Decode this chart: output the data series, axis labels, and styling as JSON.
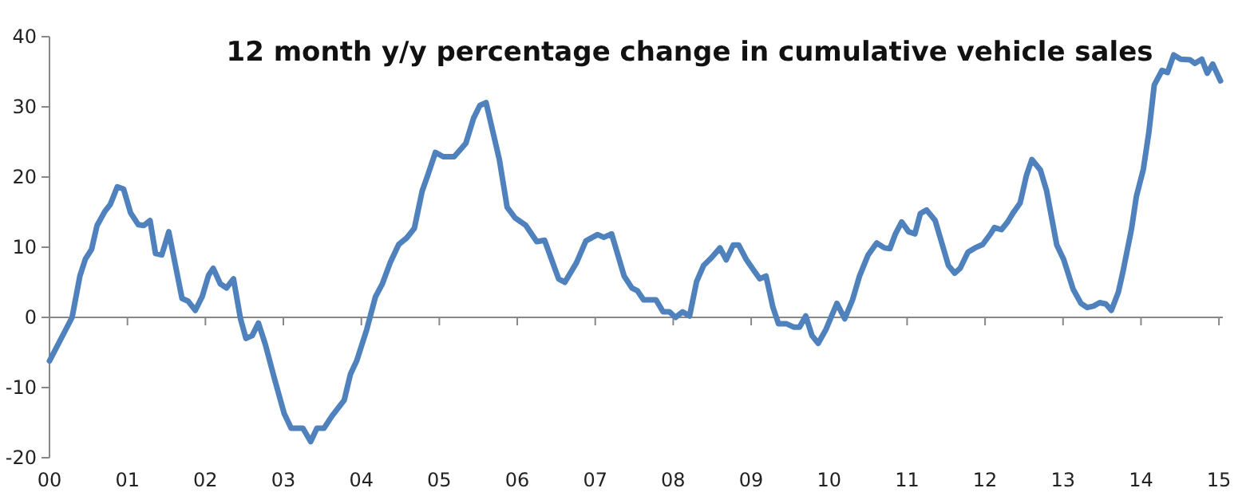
{
  "chart_data": {
    "type": "line",
    "title": "12 month y/y percentage change in cumulative vehicle sales",
    "x": [
      2000.0,
      2000.29,
      2000.39,
      2000.46,
      2000.54,
      2000.61,
      2000.71,
      2000.78,
      2000.87,
      2000.95,
      2001.04,
      2001.14,
      2001.21,
      2001.29,
      2001.36,
      2001.44,
      2001.53,
      2001.63,
      2001.7,
      2001.78,
      2001.87,
      2001.96,
      2002.04,
      2002.1,
      2002.19,
      2002.27,
      2002.36,
      2002.45,
      2002.52,
      2002.6,
      2002.68,
      2002.77,
      2002.88,
      2003.01,
      2003.1,
      2003.25,
      2003.35,
      2003.43,
      2003.52,
      2003.62,
      2003.78,
      2003.86,
      2003.94,
      2004.07,
      2004.18,
      2004.27,
      2004.37,
      2004.48,
      2004.58,
      2004.68,
      2004.78,
      2004.85,
      2004.95,
      2005.05,
      2005.19,
      2005.34,
      2005.44,
      2005.52,
      2005.6,
      2005.77,
      2005.87,
      2005.97,
      2006.11,
      2006.25,
      2006.35,
      2006.53,
      2006.61,
      2006.76,
      2006.88,
      2007.03,
      2007.11,
      2007.21,
      2007.37,
      2007.47,
      2007.54,
      2007.62,
      2007.78,
      2007.87,
      2007.95,
      2008.03,
      2008.12,
      2008.21,
      2008.3,
      2008.39,
      2008.49,
      2008.6,
      2008.68,
      2008.77,
      2008.84,
      2008.94,
      2009.04,
      2009.11,
      2009.19,
      2009.28,
      2009.35,
      2009.45,
      2009.55,
      2009.62,
      2009.7,
      2009.78,
      2009.86,
      2009.96,
      2010.1,
      2010.2,
      2010.3,
      2010.39,
      2010.5,
      2010.61,
      2010.71,
      2010.78,
      2010.85,
      2010.93,
      2011.02,
      2011.1,
      2011.17,
      2011.25,
      2011.36,
      2011.44,
      2011.53,
      2011.61,
      2011.68,
      2011.78,
      2011.87,
      2011.97,
      2012.07,
      2012.12,
      2012.21,
      2012.29,
      2012.36,
      2012.45,
      2012.53,
      2012.6,
      2012.71,
      2012.79,
      2012.92,
      2013.01,
      2013.13,
      2013.23,
      2013.31,
      2013.39,
      2013.47,
      2013.55,
      2013.62,
      2013.71,
      2013.77,
      2013.88,
      2013.94,
      2014.03,
      2014.1,
      2014.17,
      2014.27,
      2014.34,
      2014.42,
      2014.51,
      2014.63,
      2014.69,
      2014.78,
      2014.85,
      2014.92,
      2015.02
    ],
    "series": [
      {
        "color": "#4f81bd",
        "values": [
          -6.2,
          0,
          5.9,
          8.3,
          9.7,
          13.1,
          15.1,
          16.1,
          18.6,
          18.3,
          14.9,
          13.2,
          13.1,
          13.8,
          9.1,
          8.9,
          12.2,
          6.6,
          2.7,
          2.3,
          1.0,
          3.0,
          6.0,
          7.0,
          4.8,
          4.2,
          5.5,
          -0.2,
          -3.0,
          -2.6,
          -0.8,
          -3.9,
          -8.5,
          -13.7,
          -15.8,
          -15.8,
          -17.7,
          -15.8,
          -15.8,
          -14.1,
          -11.8,
          -8.1,
          -6.2,
          -1.7,
          2.9,
          4.8,
          7.8,
          10.4,
          11.3,
          12.7,
          18.0,
          20.2,
          23.5,
          22.9,
          22.9,
          24.8,
          28.4,
          30.2,
          30.6,
          22.5,
          15.7,
          14.2,
          13.1,
          10.8,
          11.0,
          5.5,
          5.0,
          7.8,
          10.9,
          11.8,
          11.4,
          11.9,
          5.9,
          4.2,
          3.8,
          2.5,
          2.5,
          0.8,
          0.8,
          0,
          0.8,
          0.2,
          5.1,
          7.4,
          8.5,
          9.9,
          8.2,
          10.3,
          10.3,
          8.2,
          6.6,
          5.5,
          5.9,
          1.4,
          -0.9,
          -0.9,
          -1.4,
          -1.4,
          0.2,
          -2.6,
          -3.7,
          -1.7,
          2.0,
          -0.2,
          2.5,
          5.9,
          8.9,
          10.6,
          9.9,
          9.8,
          11.9,
          13.6,
          12.2,
          11.9,
          14.8,
          15.3,
          13.8,
          10.8,
          7.4,
          6.3,
          7.0,
          9.3,
          9.9,
          10.4,
          11.9,
          12.8,
          12.5,
          13.6,
          14.9,
          16.3,
          20.2,
          22.5,
          21.0,
          18.0,
          10.3,
          8.2,
          4.0,
          2.0,
          1.4,
          1.6,
          2.1,
          1.9,
          1.0,
          3.6,
          6.6,
          12.7,
          17.2,
          21.1,
          26.3,
          33.1,
          35.2,
          34.9,
          37.4,
          36.8,
          36.7,
          36.2,
          36.8,
          34.8,
          36.1,
          33.7
        ]
      }
    ],
    "xlim": [
      2000,
      2015.05
    ],
    "xticks": [
      {
        "value": 2000,
        "label": "00"
      },
      {
        "value": 2001,
        "label": "01"
      },
      {
        "value": 2002,
        "label": "02"
      },
      {
        "value": 2003,
        "label": "03"
      },
      {
        "value": 2004,
        "label": "04"
      },
      {
        "value": 2005,
        "label": "05"
      },
      {
        "value": 2006,
        "label": "06"
      },
      {
        "value": 2007,
        "label": "07"
      },
      {
        "value": 2008,
        "label": "08"
      },
      {
        "value": 2009,
        "label": "09"
      },
      {
        "value": 2010,
        "label": "10"
      },
      {
        "value": 2011,
        "label": "11"
      },
      {
        "value": 2012,
        "label": "12"
      },
      {
        "value": 2013,
        "label": "13"
      },
      {
        "value": 2014,
        "label": "14"
      },
      {
        "value": 2015,
        "label": "15"
      }
    ],
    "ylim": [
      -20,
      40
    ],
    "yticks": [
      -20,
      -10,
      0,
      10,
      20,
      30,
      40
    ],
    "marker": "none",
    "line_style": "solid"
  }
}
